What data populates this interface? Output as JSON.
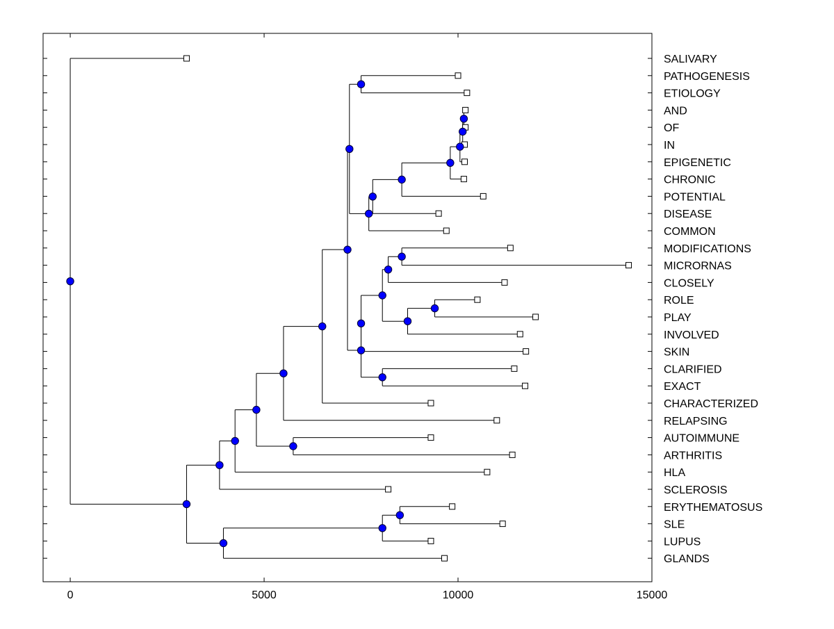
{
  "chart_data": {
    "type": "dendrogram",
    "title": "",
    "xlabel": "",
    "ylabel": "",
    "xlim": [
      -700,
      15000
    ],
    "xticks": [
      0,
      5000,
      10000,
      15000
    ],
    "xtick_labels": [
      "0",
      "5000",
      "10000",
      "15000"
    ],
    "grid": false,
    "colors": {
      "node": "#0000ff",
      "node_stroke": "#000033",
      "line": "#000000",
      "leaf_fill": "#ffffff"
    },
    "leaves": [
      {
        "label": "SALIVARY",
        "value": 3000
      },
      {
        "label": "PATHOGENESIS",
        "value": 10000
      },
      {
        "label": "ETIOLOGY",
        "value": 10230
      },
      {
        "label": "AND",
        "value": 10190
      },
      {
        "label": "OF",
        "value": 10190
      },
      {
        "label": "IN",
        "value": 10170
      },
      {
        "label": "EPIGENETIC",
        "value": 10170
      },
      {
        "label": "CHRONIC",
        "value": 10150
      },
      {
        "label": "POTENTIAL",
        "value": 10650
      },
      {
        "label": "DISEASE",
        "value": 9500
      },
      {
        "label": "COMMON",
        "value": 9700
      },
      {
        "label": "MODIFICATIONS",
        "value": 11350
      },
      {
        "label": "MICRORNAS",
        "value": 14400
      },
      {
        "label": "CLOSELY",
        "value": 11200
      },
      {
        "label": "ROLE",
        "value": 10500
      },
      {
        "label": "PLAY",
        "value": 12000
      },
      {
        "label": "INVOLVED",
        "value": 11600
      },
      {
        "label": "SKIN",
        "value": 11750
      },
      {
        "label": "CLARIFIED",
        "value": 11450
      },
      {
        "label": "EXACT",
        "value": 11730
      },
      {
        "label": "CHARACTERIZED",
        "value": 9300
      },
      {
        "label": "RELAPSING",
        "value": 11000
      },
      {
        "label": "AUTOIMMUNE",
        "value": 9300
      },
      {
        "label": "ARTHRITIS",
        "value": 11400
      },
      {
        "label": "HLA",
        "value": 10750
      },
      {
        "label": "SCLEROSIS",
        "value": 8200
      },
      {
        "label": "ERYTHEMATOSUS",
        "value": 9850
      },
      {
        "label": "SLE",
        "value": 11150
      },
      {
        "label": "LUPUS",
        "value": 9300
      },
      {
        "label": "GLANDS",
        "value": 9650
      }
    ],
    "internal_nodes": [
      {
        "id": "n_and_of",
        "value": 10150,
        "children": [
          "AND",
          "OF"
        ]
      },
      {
        "id": "n_in",
        "value": 10120,
        "children": [
          "n_and_of",
          "IN"
        ]
      },
      {
        "id": "n_epigenetic",
        "value": 10050,
        "children": [
          "n_in",
          "EPIGENETIC"
        ]
      },
      {
        "id": "n_chronic",
        "value": 9800,
        "children": [
          "n_epigenetic",
          "CHRONIC"
        ]
      },
      {
        "id": "n_potential",
        "value": 8550,
        "children": [
          "n_chronic",
          "POTENTIAL"
        ]
      },
      {
        "id": "n_disease",
        "value": 7800,
        "children": [
          "n_potential",
          "DISEASE"
        ]
      },
      {
        "id": "n_common",
        "value": 7700,
        "children": [
          "n_disease",
          "COMMON"
        ]
      },
      {
        "id": "n_path_etiol",
        "value": 7500,
        "children": [
          "PATHOGENESIS",
          "ETIOLOGY"
        ]
      },
      {
        "id": "n_upper",
        "value": 7200,
        "children": [
          "n_path_etiol",
          "n_common"
        ]
      },
      {
        "id": "n_mod_mir",
        "value": 8550,
        "children": [
          "MODIFICATIONS",
          "MICRORNAS"
        ]
      },
      {
        "id": "n_closely",
        "value": 8200,
        "children": [
          "n_mod_mir",
          "CLOSELY"
        ]
      },
      {
        "id": "n_role_play",
        "value": 9400,
        "children": [
          "ROLE",
          "PLAY"
        ]
      },
      {
        "id": "n_involved",
        "value": 8700,
        "children": [
          "n_role_play",
          "INVOLVED"
        ]
      },
      {
        "id": "n_mid_a",
        "value": 8050,
        "children": [
          "n_closely",
          "n_involved"
        ]
      },
      {
        "id": "n_mid_b",
        "value": 7500,
        "children": [
          "n_mid_a",
          "SKIN"
        ]
      },
      {
        "id": "n_clar_exact",
        "value": 8050,
        "children": [
          "CLARIFIED",
          "EXACT"
        ]
      },
      {
        "id": "n_mid_c",
        "value": 7500,
        "children": [
          "n_mid_b",
          "n_clar_exact"
        ]
      },
      {
        "id": "n_big",
        "value": 7150,
        "children": [
          "n_upper",
          "n_mid_c"
        ]
      },
      {
        "id": "n_char",
        "value": 6500,
        "children": [
          "n_big",
          "CHARACTERIZED"
        ]
      },
      {
        "id": "n_relapsing",
        "value": 5500,
        "children": [
          "n_char",
          "RELAPSING"
        ]
      },
      {
        "id": "n_auto_arth",
        "value": 5750,
        "children": [
          "AUTOIMMUNE",
          "ARTHRITIS"
        ]
      },
      {
        "id": "n_auto_group",
        "value": 4800,
        "children": [
          "n_relapsing",
          "n_auto_arth"
        ]
      },
      {
        "id": "n_hla",
        "value": 4250,
        "children": [
          "n_auto_group",
          "HLA"
        ]
      },
      {
        "id": "n_sclerosis",
        "value": 3850,
        "children": [
          "n_hla",
          "SCLEROSIS"
        ]
      },
      {
        "id": "n_ery_sle",
        "value": 8500,
        "children": [
          "ERYTHEMATOSUS",
          "SLE"
        ]
      },
      {
        "id": "n_lupus",
        "value": 8050,
        "children": [
          "n_ery_sle",
          "LUPUS"
        ]
      },
      {
        "id": "n_glands",
        "value": 3950,
        "children": [
          "n_lupus",
          "GLANDS"
        ]
      },
      {
        "id": "n_lower",
        "value": 3000,
        "children": [
          "n_sclerosis",
          "n_glands"
        ]
      },
      {
        "id": "root",
        "value": 0,
        "children": [
          "SALIVARY",
          "n_lower"
        ]
      }
    ]
  }
}
